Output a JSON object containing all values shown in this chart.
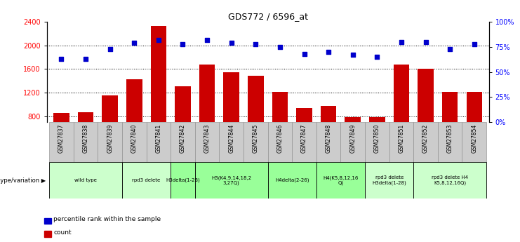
{
  "title": "GDS772 / 6596_at",
  "samples": [
    "GSM27837",
    "GSM27838",
    "GSM27839",
    "GSM27840",
    "GSM27841",
    "GSM27842",
    "GSM27843",
    "GSM27844",
    "GSM27845",
    "GSM27846",
    "GSM27847",
    "GSM27848",
    "GSM27849",
    "GSM27850",
    "GSM27851",
    "GSM27852",
    "GSM27853",
    "GSM27854"
  ],
  "counts": [
    860,
    870,
    1155,
    1430,
    2330,
    1310,
    1680,
    1550,
    1490,
    1210,
    935,
    980,
    790,
    790,
    1680,
    1610,
    1210,
    1210
  ],
  "percentiles": [
    63,
    63,
    73,
    79,
    82,
    78,
    82,
    79,
    78,
    75,
    68,
    70,
    67,
    65,
    80,
    80,
    73,
    78
  ],
  "ylim_left": [
    700,
    2400
  ],
  "ylim_right": [
    0,
    100
  ],
  "yticks_left": [
    800,
    1200,
    1600,
    2000,
    2400
  ],
  "yticks_right": [
    0,
    25,
    50,
    75,
    100
  ],
  "bar_color": "#cc0000",
  "dot_color": "#0000cc",
  "background_color": "#ffffff",
  "xticklabel_bg": "#cccccc",
  "groups": [
    {
      "label": "wild type",
      "start": 0,
      "end": 3,
      "color": "#ccffcc"
    },
    {
      "label": "rpd3 delete",
      "start": 3,
      "end": 5,
      "color": "#ccffcc"
    },
    {
      "label": "H3delta(1-28)",
      "start": 5,
      "end": 6,
      "color": "#99ff99"
    },
    {
      "label": "H3(K4,9,14,18,2\n3,27Q)",
      "start": 6,
      "end": 9,
      "color": "#99ff99"
    },
    {
      "label": "H4delta(2-26)",
      "start": 9,
      "end": 11,
      "color": "#99ff99"
    },
    {
      "label": "H4(K5,8,12,16\nQ)",
      "start": 11,
      "end": 13,
      "color": "#99ff99"
    },
    {
      "label": "rpd3 delete\nH3delta(1-28)",
      "start": 13,
      "end": 15,
      "color": "#ccffcc"
    },
    {
      "label": "rpd3 delete H4\nK5,8,12,16Q)",
      "start": 15,
      "end": 18,
      "color": "#ccffcc"
    }
  ],
  "legend_items": [
    {
      "color": "#cc0000",
      "label": "count"
    },
    {
      "color": "#0000cc",
      "label": "percentile rank within the sample"
    }
  ]
}
